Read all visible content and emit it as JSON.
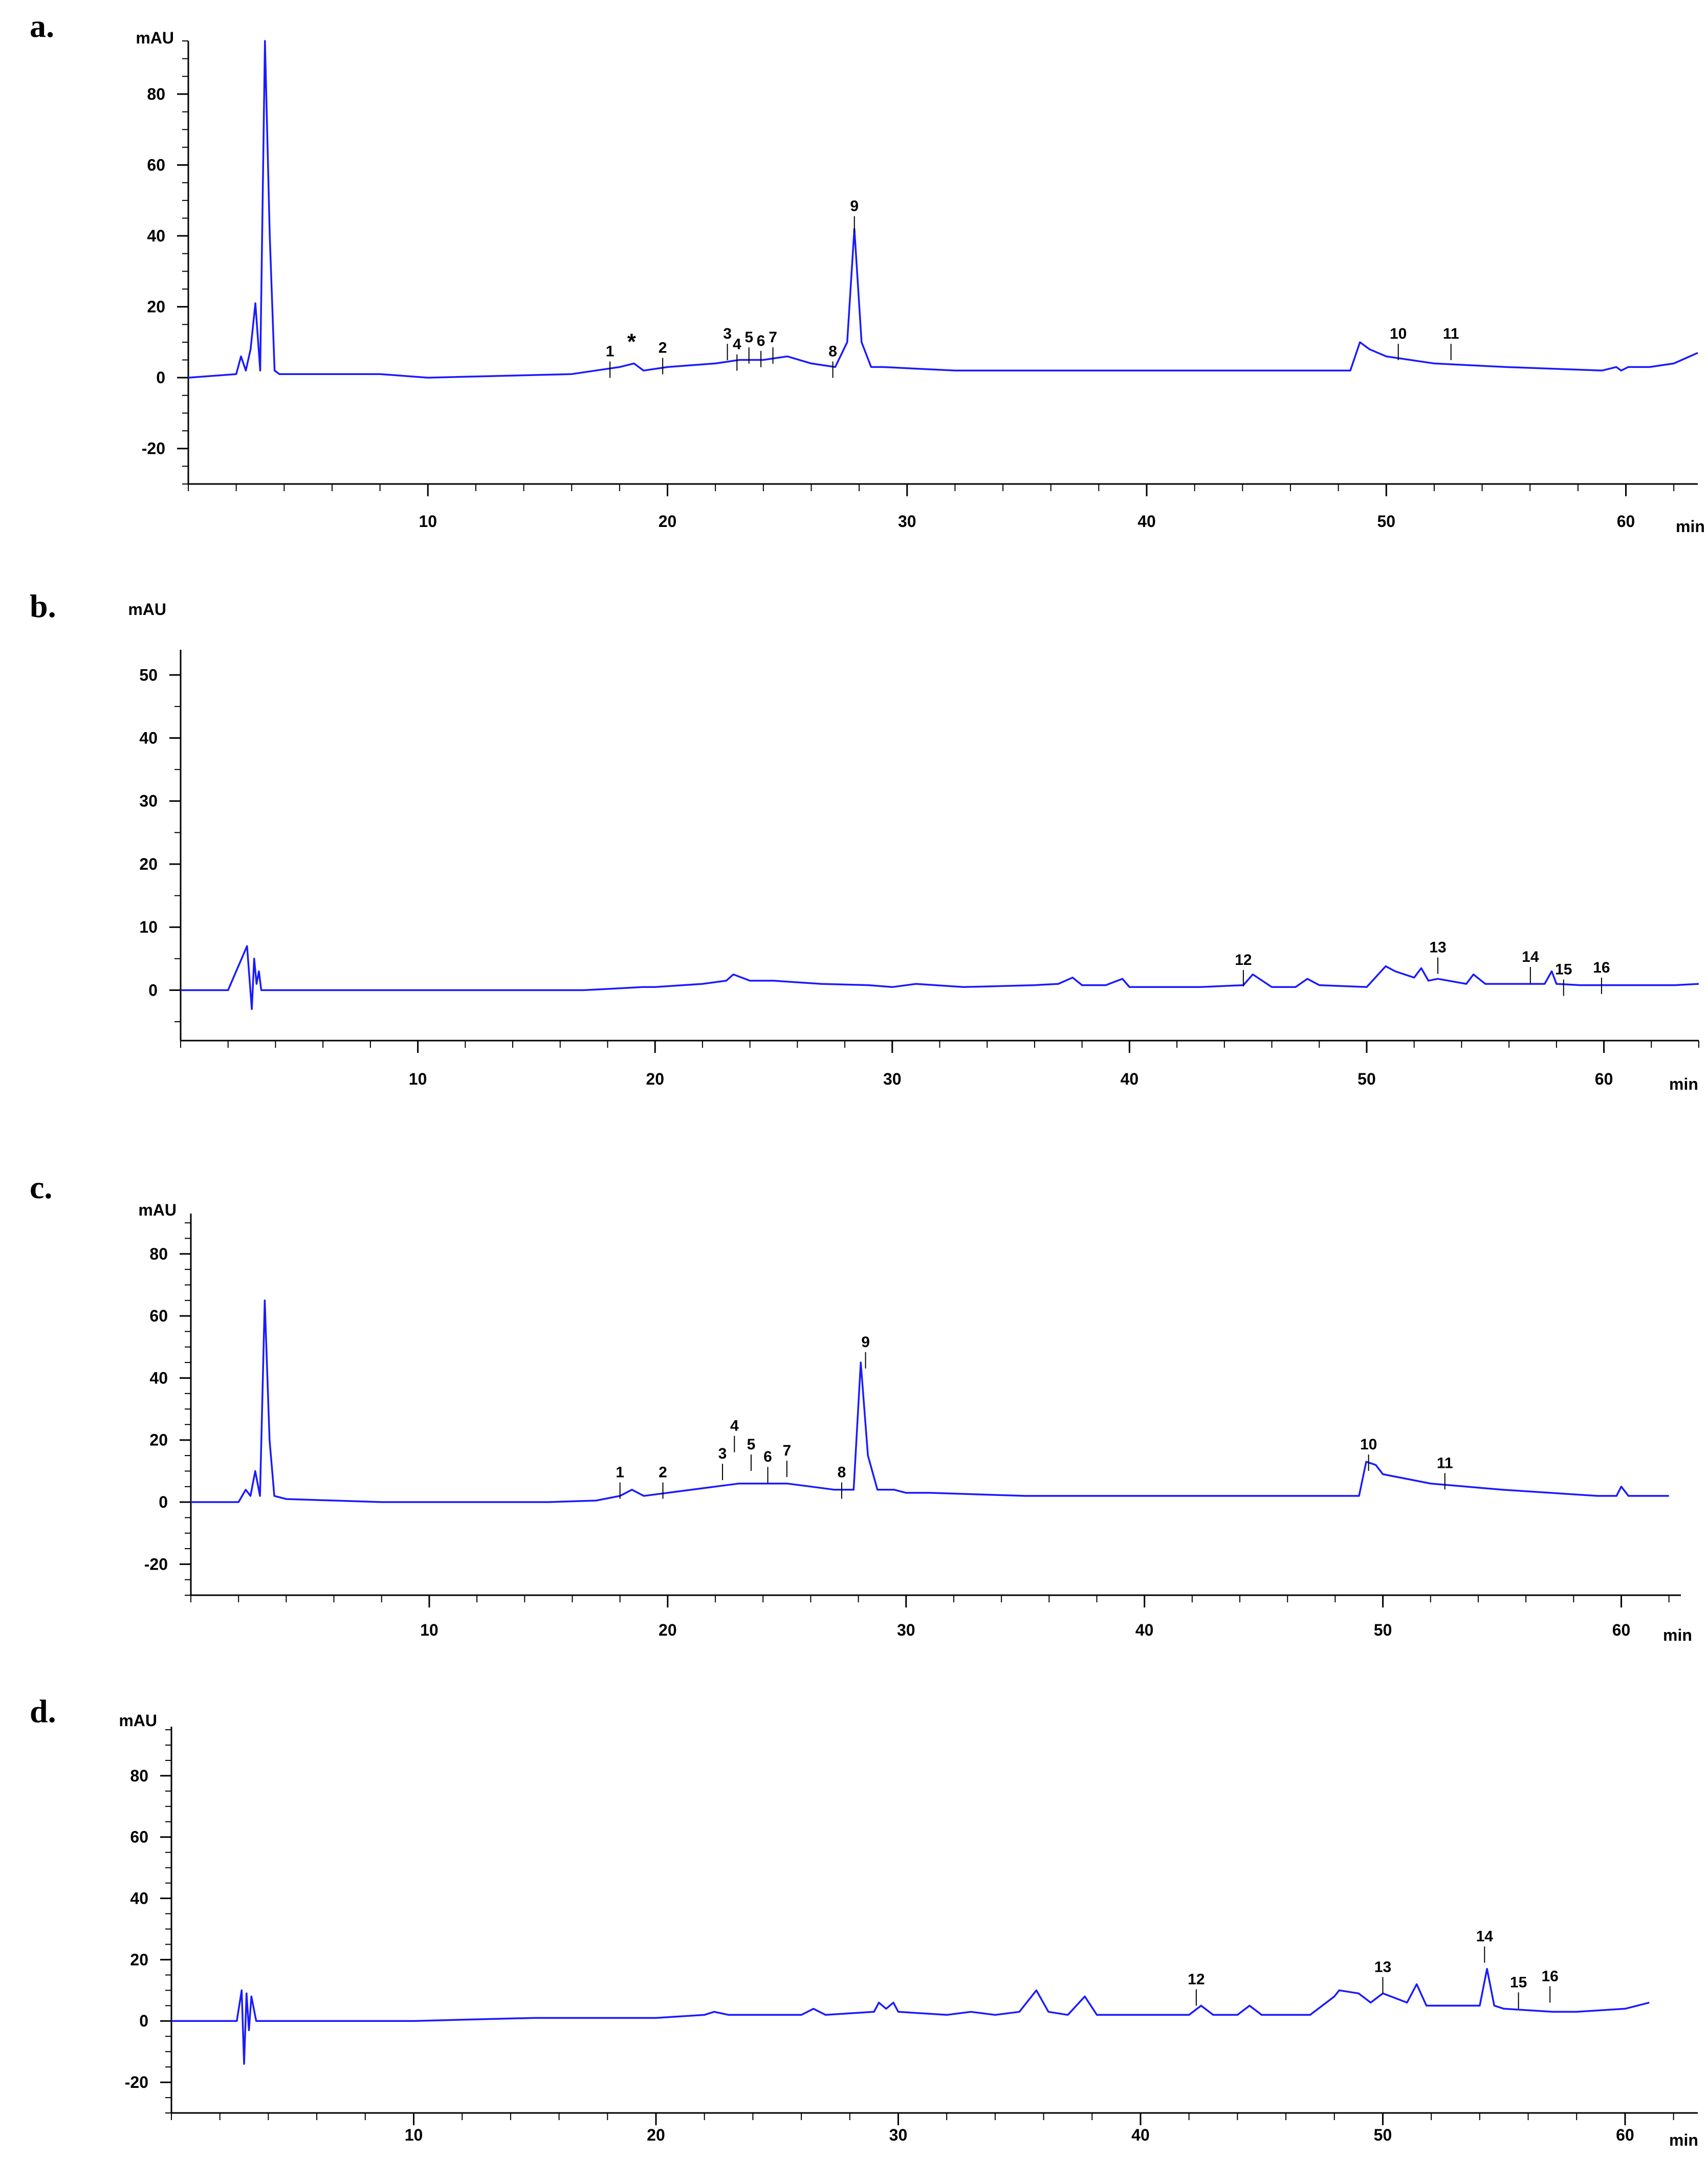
{
  "colors": {
    "trace": "#1a1aff",
    "integration": "#ff00ff",
    "axis": "#000000"
  },
  "chart_data": [
    {
      "type": "line",
      "panel_label": "a.",
      "y_unit": "mAU",
      "x_unit": "min",
      "xlim": [
        0,
        63
      ],
      "ylim": [
        -30,
        95
      ],
      "x_ticks": [
        10,
        20,
        30,
        40,
        50,
        60
      ],
      "y_ticks": [
        80,
        60,
        40,
        20,
        0,
        -20
      ],
      "series": [
        {
          "x": [
            0,
            2,
            2.2,
            2.4,
            2.6,
            2.8,
            3.0,
            3.2,
            3.4,
            3.6,
            3.8,
            4.2,
            5,
            8,
            10,
            16,
            17,
            18,
            18.6,
            19,
            20,
            22,
            23,
            24,
            25,
            26,
            27,
            27.5,
            27.8,
            28.1,
            28.5,
            29,
            32,
            35,
            40,
            45,
            48.5,
            48.9,
            49.3,
            50,
            52,
            55,
            59,
            59.6,
            59.8,
            60.1,
            61,
            62,
            63
          ],
          "y": [
            0,
            1,
            6,
            2,
            8,
            21,
            2,
            95,
            40,
            2,
            1,
            1,
            1,
            1,
            0,
            1,
            2,
            3,
            4,
            2,
            3,
            4,
            5,
            5,
            6,
            4,
            3,
            10,
            42,
            10,
            3,
            3,
            2,
            2,
            2,
            2,
            2,
            10,
            8,
            6,
            4,
            3,
            2,
            3,
            2,
            3,
            3,
            4,
            7
          ]
        }
      ],
      "peak_labels": [
        {
          "text": "1",
          "x": 17.6,
          "y": 6
        },
        {
          "text": "*",
          "x": 18.5,
          "y": 8
        },
        {
          "text": "2",
          "x": 19.8,
          "y": 7
        },
        {
          "text": "3",
          "x": 22.5,
          "y": 11
        },
        {
          "text": "4",
          "x": 22.9,
          "y": 8
        },
        {
          "text": "5",
          "x": 23.4,
          "y": 10
        },
        {
          "text": "6",
          "x": 23.9,
          "y": 9
        },
        {
          "text": "7",
          "x": 24.4,
          "y": 10
        },
        {
          "text": "8",
          "x": 26.9,
          "y": 6
        },
        {
          "text": "9",
          "x": 27.8,
          "y": 47
        },
        {
          "text": "10",
          "x": 50.5,
          "y": 11
        },
        {
          "text": "11",
          "x": 52.7,
          "y": 11
        }
      ]
    },
    {
      "type": "line",
      "panel_label": "b.",
      "y_unit": "mAU",
      "x_unit": "min",
      "xlim": [
        0,
        64
      ],
      "ylim": [
        -8,
        54
      ],
      "x_ticks": [
        10,
        20,
        30,
        40,
        50,
        60
      ],
      "y_ticks": [
        50,
        40,
        30,
        20,
        10,
        0
      ],
      "series": [
        {
          "x": [
            0,
            2,
            2.8,
            3.0,
            3.1,
            3.2,
            3.3,
            3.4,
            3.6,
            4,
            10,
            17,
            18,
            19.5,
            20,
            22,
            23,
            23.3,
            24,
            25,
            27,
            29,
            30,
            31,
            33,
            36,
            37,
            37.6,
            38,
            39,
            39.7,
            40,
            43,
            44.8,
            45.2,
            46,
            47,
            47.5,
            48,
            50,
            50.8,
            51.2,
            52,
            52.3,
            52.6,
            53,
            54.2,
            54.5,
            55,
            57,
            57.5,
            57.8,
            58,
            59,
            60,
            61,
            62,
            63,
            64
          ],
          "y": [
            0,
            0,
            7,
            -3,
            5,
            1,
            3,
            0,
            0,
            0,
            0,
            0,
            0.2,
            0.5,
            0.5,
            1,
            1.5,
            2.5,
            1.5,
            1.5,
            1,
            0.8,
            0.5,
            1,
            0.5,
            0.8,
            1,
            2,
            0.8,
            0.8,
            1.8,
            0.5,
            0.5,
            0.8,
            2.5,
            0.5,
            0.5,
            1.8,
            0.8,
            0.5,
            3.8,
            3,
            2,
            3.5,
            1.5,
            1.8,
            1,
            2.5,
            1,
            1,
            1,
            3,
            1,
            0.8,
            0.8,
            0.8,
            0.8,
            0.8,
            1
          ]
        }
      ],
      "peak_labels": [
        {
          "text": "12",
          "x": 44.8,
          "y": 4
        },
        {
          "text": "13",
          "x": 53.0,
          "y": 6
        },
        {
          "text": "14",
          "x": 56.9,
          "y": 4.5
        },
        {
          "text": "15",
          "x": 58.3,
          "y": 2.5
        },
        {
          "text": "16",
          "x": 59.9,
          "y": 2.8
        }
      ]
    },
    {
      "type": "line",
      "panel_label": "c.",
      "y_unit": "mAU",
      "x_unit": "min",
      "xlim": [
        0,
        62.5
      ],
      "ylim": [
        -30,
        93
      ],
      "x_ticks": [
        10,
        20,
        30,
        40,
        50,
        60
      ],
      "y_ticks": [
        80,
        60,
        40,
        20,
        0,
        -20
      ],
      "series": [
        {
          "x": [
            0,
            2,
            2.3,
            2.5,
            2.7,
            2.9,
            3.1,
            3.3,
            3.5,
            4,
            8,
            15,
            17,
            18,
            18.5,
            19,
            20,
            22,
            23,
            24,
            25,
            26,
            27,
            27.8,
            28.1,
            28.4,
            28.8,
            29.5,
            30,
            31,
            35,
            40,
            45,
            48,
            49,
            49.3,
            49.7,
            50,
            52,
            55,
            59,
            59.8,
            60,
            60.3,
            61,
            61.5,
            62
          ],
          "y": [
            0,
            0,
            4,
            2,
            10,
            2,
            65,
            20,
            2,
            1,
            0,
            0,
            0.5,
            2,
            4,
            2,
            3,
            5,
            6,
            6,
            6,
            5,
            4,
            4,
            45,
            15,
            4,
            4,
            3,
            3,
            2,
            2,
            2,
            2,
            2,
            13,
            12,
            9,
            6,
            4,
            2,
            2,
            5,
            2,
            2,
            2,
            2
          ]
        }
      ],
      "peak_labels": [
        {
          "text": "1",
          "x": 18.0,
          "y": 8
        },
        {
          "text": "2",
          "x": 19.8,
          "y": 8
        },
        {
          "text": "3",
          "x": 22.3,
          "y": 14
        },
        {
          "text": "4",
          "x": 22.8,
          "y": 23
        },
        {
          "text": "5",
          "x": 23.5,
          "y": 17
        },
        {
          "text": "6",
          "x": 24.2,
          "y": 13
        },
        {
          "text": "7",
          "x": 25.0,
          "y": 15
        },
        {
          "text": "8",
          "x": 27.3,
          "y": 8
        },
        {
          "text": "9",
          "x": 28.3,
          "y": 50
        },
        {
          "text": "10",
          "x": 49.4,
          "y": 17
        },
        {
          "text": "11",
          "x": 52.6,
          "y": 11
        }
      ]
    },
    {
      "type": "line",
      "panel_label": "d.",
      "y_unit": "mAU",
      "x_unit": "min",
      "xlim": [
        0,
        63
      ],
      "ylim": [
        -30,
        96
      ],
      "x_ticks": [
        10,
        20,
        30,
        40,
        50,
        60
      ],
      "y_ticks": [
        80,
        60,
        40,
        20,
        0,
        -20
      ],
      "series": [
        {
          "x": [
            0,
            2.7,
            2.9,
            3.0,
            3.1,
            3.2,
            3.3,
            3.5,
            3.8,
            5,
            10,
            15,
            20,
            22,
            22.4,
            23,
            26,
            26.5,
            27,
            29,
            29.2,
            29.5,
            29.8,
            30,
            32,
            33,
            34,
            35,
            35.7,
            36.2,
            37,
            37.7,
            38.2,
            40,
            42,
            42.5,
            43,
            44,
            44.5,
            45,
            47,
            48,
            48.2,
            49,
            49.5,
            50,
            51,
            51.4,
            51.8,
            53,
            54,
            54.3,
            54.6,
            55,
            57,
            58,
            60,
            61
          ],
          "y": [
            0,
            0,
            10,
            -14,
            9,
            -3,
            8,
            0,
            0,
            0,
            0,
            1,
            1,
            2,
            3,
            2,
            2,
            4,
            2,
            3,
            6,
            4,
            6,
            3,
            2,
            3,
            2,
            3,
            10,
            3,
            2,
            8,
            2,
            2,
            2,
            5,
            2,
            2,
            5,
            2,
            2,
            8,
            10,
            9,
            6,
            9,
            6,
            12,
            5,
            5,
            5,
            17,
            5,
            4,
            3,
            3,
            4,
            6
          ]
        }
      ],
      "peak_labels": [
        {
          "text": "12",
          "x": 42.3,
          "y": 12
        },
        {
          "text": "13",
          "x": 50.0,
          "y": 16
        },
        {
          "text": "14",
          "x": 54.2,
          "y": 26
        },
        {
          "text": "15",
          "x": 55.6,
          "y": 11
        },
        {
          "text": "16",
          "x": 56.9,
          "y": 13
        }
      ]
    }
  ]
}
